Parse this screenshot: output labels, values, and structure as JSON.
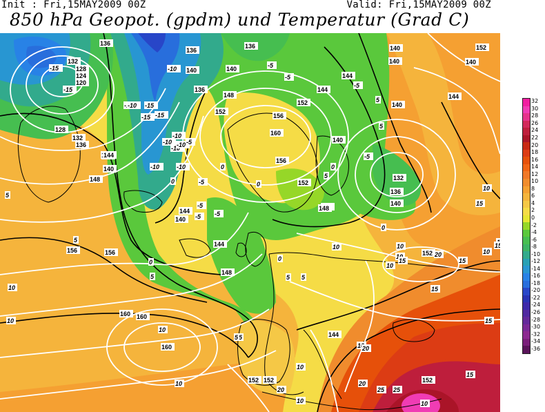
{
  "header": {
    "init": "Init : Fri,15MAY2009 00Z",
    "valid": "Valid: Fri,15MAY2009 00Z",
    "title": "850 hPa Geopot. (gpdm) und Temperatur (Grad C)"
  },
  "legend": {
    "values": [
      32,
      30,
      28,
      26,
      24,
      22,
      20,
      18,
      16,
      14,
      12,
      10,
      8,
      6,
      4,
      2,
      0,
      -2,
      -4,
      -6,
      -8,
      -10,
      -12,
      -14,
      -16,
      -18,
      -20,
      -22,
      -24,
      -26,
      -28,
      -30,
      -32,
      -34,
      -36
    ],
    "labels": [
      "32",
      "30",
      "28",
      "26",
      "24",
      "22",
      "20",
      "18",
      "16",
      "14",
      "12",
      "10",
      "8",
      "6",
      "4",
      "2",
      "0",
      "-2",
      "-4",
      "-6",
      "-8",
      "-10",
      "-12",
      "-14",
      "-16",
      "-18",
      "-20",
      "-22",
      "-24",
      "-26",
      "-28",
      "-30",
      "-32",
      "-34",
      "-36"
    ],
    "colors": [
      "#f01ea0",
      "#f03cb4",
      "#e6328c",
      "#d2285a",
      "#be1e3c",
      "#aa1428",
      "#c82814",
      "#dc3c14",
      "#e6500a",
      "#f06414",
      "#f07828",
      "#f08c2d",
      "#f5a032",
      "#f5b43c",
      "#f5c846",
      "#f5dc46",
      "#e6e632",
      "#96d728",
      "#5ac83c",
      "#46be50",
      "#3cb464",
      "#32aa8c",
      "#28a0b4",
      "#2896d2",
      "#2882e6",
      "#286edc",
      "#2846c8",
      "#2832b4",
      "#3c28aa",
      "#5028a0",
      "#64289a",
      "#7a2896",
      "#8c2890",
      "#7a1e7a",
      "#5a145a"
    ]
  },
  "map": {
    "geopotential_labels": [
      "136",
      "136",
      "136",
      "128",
      "124",
      "120",
      "132",
      "128",
      "132",
      "136",
      "144",
      "140",
      "140",
      "136",
      "148",
      "152",
      "156",
      "160",
      "156",
      "152",
      "152",
      "148",
      "144",
      "140",
      "140",
      "140",
      "144",
      "140",
      "148",
      "144",
      "140",
      "136",
      "132",
      "140",
      "148",
      "144",
      "152",
      "156",
      "160",
      "156",
      "160",
      "160",
      "144",
      "152",
      "152",
      "152",
      "148",
      "144",
      "140",
      "140",
      "152",
      "140",
      "144"
    ],
    "temperature_labels": [
      "-15",
      "-15",
      "-15",
      "-15",
      "-15",
      "-15",
      "-10",
      "-10",
      "-10",
      "-10",
      "-10",
      "-10",
      "-10",
      "-10",
      "-5",
      "-5",
      "-5",
      "-5",
      "-5",
      "-5",
      "-5",
      "-5",
      "-5",
      "0",
      "0",
      "0",
      "0",
      "0",
      "0",
      "0",
      "5",
      "5",
      "5",
      "5",
      "5",
      "5",
      "5",
      "5",
      "5",
      "5",
      "10",
      "10",
      "10",
      "10",
      "10",
      "10",
      "10",
      "10",
      "10",
      "10",
      "10",
      "10",
      "10",
      "10",
      "15",
      "15",
      "15",
      "15",
      "15",
      "15",
      "15",
      "15",
      "20",
      "20",
      "20",
      "20",
      "25",
      "25"
    ]
  }
}
